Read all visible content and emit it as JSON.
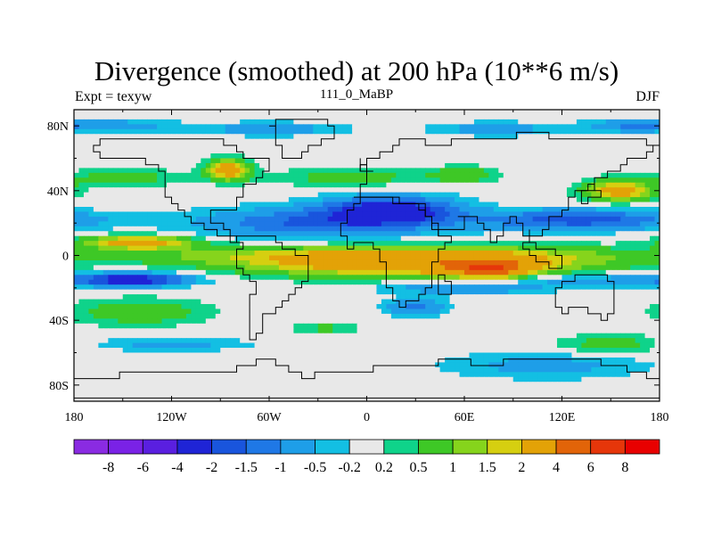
{
  "title": "Divergence (smoothed) at 200 hPa (10**6 m/s)",
  "subtitle_left": "Expt = texyw",
  "subtitle_center": "111_0_MaBP",
  "subtitle_right": "DJF",
  "x_ticks": [
    "180",
    "120W",
    "60W",
    "0",
    "60E",
    "120E",
    "180"
  ],
  "y_ticks": [
    "80N",
    "40N",
    "0",
    "40S",
    "80S"
  ],
  "colorbar": {
    "labels": [
      "-8",
      "-6",
      "-4",
      "-2",
      "-1.5",
      "-1",
      "-0.5",
      "-0.2",
      "0.2",
      "0.5",
      "1",
      "1.5",
      "2",
      "4",
      "6",
      "8"
    ],
    "colors": [
      "#8a2be2",
      "#7a22e6",
      "#5a1fe0",
      "#1f24d6",
      "#1955dd",
      "#1f78e6",
      "#1e9ee8",
      "#13bfe3",
      "#e8e8e8",
      "#0fd38a",
      "#3ec826",
      "#86d41c",
      "#d6cf10",
      "#e3a207",
      "#e26409",
      "#e6360a",
      "#e80000"
    ]
  },
  "chart_data": {
    "type": "heatmap",
    "title": "Divergence (smoothed) at 200 hPa (10**6 m/s)",
    "xlabel": "",
    "ylabel": "",
    "xlim": [
      -180,
      180
    ],
    "ylim": [
      -90,
      90
    ],
    "levels": [
      -8,
      -6,
      -4,
      -2,
      -1.5,
      -1,
      -0.5,
      -0.2,
      0.2,
      0.5,
      1,
      1.5,
      2,
      4,
      6,
      8
    ],
    "x_ticks": [
      -180,
      -120,
      -60,
      0,
      60,
      120,
      180
    ],
    "y_ticks": [
      80,
      40,
      0,
      -40,
      -80
    ],
    "blobs": [
      {
        "lon": 0,
        "lat": 0,
        "rx": 180,
        "ry": 6,
        "value": 1.2
      },
      {
        "lon": 30,
        "lat": -5,
        "rx": 95,
        "ry": 8,
        "value": 3.0
      },
      {
        "lon": 75,
        "lat": -8,
        "rx": 22,
        "ry": 5,
        "value": 4.6
      },
      {
        "lon": -140,
        "lat": 8,
        "rx": 32,
        "ry": 4,
        "value": 2.6
      },
      {
        "lon": 155,
        "lat": 40,
        "rx": 20,
        "ry": 6,
        "value": 2.6
      },
      {
        "lon": -85,
        "lat": 53,
        "rx": 12,
        "ry": 6,
        "value": 2.8
      },
      {
        "lon": 130,
        "lat": 22,
        "rx": 60,
        "ry": 6,
        "value": -1.8
      },
      {
        "lon": -30,
        "lat": 20,
        "rx": 70,
        "ry": 9,
        "value": -1.6
      },
      {
        "lon": 15,
        "lat": 28,
        "rx": 38,
        "ry": 8,
        "value": -2.6
      },
      {
        "lon": -145,
        "lat": -15,
        "rx": 35,
        "ry": 4,
        "value": -2.6
      },
      {
        "lon": 60,
        "lat": -20,
        "rx": 50,
        "ry": 4,
        "value": -1.0
      },
      {
        "lon": 135,
        "lat": -15,
        "rx": 45,
        "ry": 4,
        "value": -0.8
      },
      {
        "lon": 30,
        "lat": -32,
        "rx": 18,
        "ry": 5,
        "value": -1.2
      },
      {
        "lon": -160,
        "lat": 80,
        "rx": 40,
        "ry": 4,
        "value": -0.8
      },
      {
        "lon": -60,
        "lat": 78,
        "rx": 45,
        "ry": 4,
        "value": -0.8
      },
      {
        "lon": 80,
        "lat": 78,
        "rx": 40,
        "ry": 4,
        "value": -0.8
      },
      {
        "lon": 160,
        "lat": 80,
        "rx": 25,
        "ry": 4,
        "value": -0.8
      },
      {
        "lon": -150,
        "lat": 48,
        "rx": 40,
        "ry": 5,
        "value": 0.7
      },
      {
        "lon": -10,
        "lat": 48,
        "rx": 55,
        "ry": 5,
        "value": 0.7
      },
      {
        "lon": 60,
        "lat": 50,
        "rx": 20,
        "ry": 5,
        "value": 0.8
      },
      {
        "lon": -140,
        "lat": -35,
        "rx": 40,
        "ry": 8,
        "value": 0.9
      },
      {
        "lon": -25,
        "lat": -45,
        "rx": 20,
        "ry": 4,
        "value": 0.6
      },
      {
        "lon": 150,
        "lat": -55,
        "rx": 30,
        "ry": 6,
        "value": 0.8
      },
      {
        "lon": 110,
        "lat": -68,
        "rx": 60,
        "ry": 8,
        "value": -0.7
      },
      {
        "lon": -120,
        "lat": -55,
        "rx": 45,
        "ry": 4,
        "value": -0.7
      }
    ]
  }
}
